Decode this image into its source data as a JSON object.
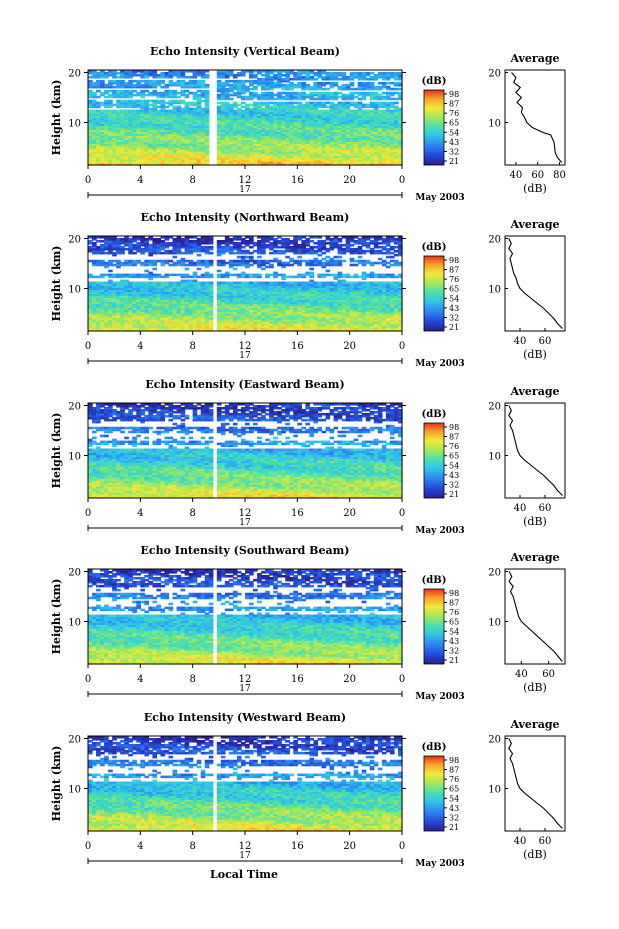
{
  "figure": {
    "x_axis_label": "Local Time",
    "x_ticks": [
      "0",
      "4",
      "8",
      "12",
      "16",
      "20",
      "0"
    ],
    "date_day": "17",
    "date_label": "May 2003",
    "y_axis_label": "Height (km)",
    "y_ticks": [
      "20",
      "10"
    ],
    "colorbar_title": "(dB)",
    "avg_title": "Average",
    "avg_xlabel": "(dB)"
  },
  "chart_data": [
    {
      "type": "heatmap",
      "title": "Echo Intensity (Vertical Beam)",
      "xlabel": "",
      "ylabel": "Height (km)",
      "xlim": [
        0,
        24
      ],
      "ylim": [
        1.5,
        20.5
      ],
      "colorbar": {
        "label": "(dB)",
        "ticks": [
          "98",
          "87",
          "76",
          "65",
          "54",
          "43",
          "32",
          "21"
        ],
        "range": [
          21,
          98
        ]
      },
      "data_gap_hours": [
        9.3,
        9.7
      ],
      "average_profile": {
        "xlabel": "(dB)",
        "xticks": [
          "40",
          "60",
          "80"
        ],
        "yticks": [
          "20",
          "10"
        ],
        "xlim": [
          30,
          85
        ],
        "points": [
          [
            36,
            20
          ],
          [
            40,
            19
          ],
          [
            38,
            18
          ],
          [
            44,
            17
          ],
          [
            40,
            16
          ],
          [
            45,
            15
          ],
          [
            41,
            14
          ],
          [
            46,
            13
          ],
          [
            45,
            12
          ],
          [
            48,
            11
          ],
          [
            50,
            10
          ],
          [
            55,
            9
          ],
          [
            65,
            8
          ],
          [
            72,
            7.5
          ],
          [
            75,
            6
          ],
          [
            76,
            4
          ],
          [
            78,
            3
          ],
          [
            82,
            2
          ]
        ]
      }
    },
    {
      "type": "heatmap",
      "title": "Echo Intensity (Northward Beam)",
      "xlabel": "",
      "ylabel": "Height (km)",
      "xlim": [
        0,
        24
      ],
      "ylim": [
        1.5,
        20.5
      ],
      "colorbar": {
        "label": "(dB)",
        "ticks": [
          "98",
          "87",
          "76",
          "65",
          "54",
          "43",
          "32",
          "21"
        ],
        "range": [
          21,
          98
        ]
      },
      "data_gap_hours": [
        9.4,
        9.8
      ],
      "average_profile": {
        "xlabel": "(dB)",
        "xticks": [
          "40",
          "60"
        ],
        "yticks": [
          "20",
          "10"
        ],
        "xlim": [
          28,
          76
        ],
        "points": [
          [
            31,
            20
          ],
          [
            33,
            19
          ],
          [
            31,
            18
          ],
          [
            34,
            17
          ],
          [
            32,
            16
          ],
          [
            33,
            15
          ],
          [
            34,
            14
          ],
          [
            35,
            13
          ],
          [
            37,
            12
          ],
          [
            38,
            11
          ],
          [
            40,
            10
          ],
          [
            44,
            9
          ],
          [
            49,
            8
          ],
          [
            54,
            7
          ],
          [
            59,
            6
          ],
          [
            63,
            5
          ],
          [
            67,
            4
          ],
          [
            70,
            3
          ],
          [
            74,
            2
          ]
        ]
      }
    },
    {
      "type": "heatmap",
      "title": "Echo Intensity (Eastward Beam)",
      "xlabel": "",
      "ylabel": "Height (km)",
      "xlim": [
        0,
        24
      ],
      "ylim": [
        1.5,
        20.5
      ],
      "colorbar": {
        "label": "(dB)",
        "ticks": [
          "98",
          "87",
          "76",
          "65",
          "54",
          "43",
          "32",
          "21"
        ],
        "range": [
          21,
          98
        ]
      },
      "data_gap_hours": [
        9.4,
        9.8
      ],
      "average_profile": {
        "xlabel": "(dB)",
        "xticks": [
          "40",
          "60"
        ],
        "yticks": [
          "20",
          "10"
        ],
        "xlim": [
          28,
          76
        ],
        "points": [
          [
            31,
            20
          ],
          [
            33,
            19
          ],
          [
            31,
            18
          ],
          [
            34,
            17
          ],
          [
            32,
            16
          ],
          [
            34,
            15
          ],
          [
            35,
            14
          ],
          [
            36,
            13
          ],
          [
            37,
            12
          ],
          [
            38,
            11
          ],
          [
            40,
            10
          ],
          [
            44,
            9
          ],
          [
            49,
            8
          ],
          [
            54,
            7
          ],
          [
            59,
            6
          ],
          [
            63,
            5
          ],
          [
            67,
            4
          ],
          [
            70,
            3
          ],
          [
            74,
            2
          ]
        ]
      }
    },
    {
      "type": "heatmap",
      "title": "Echo Intensity (Southward Beam)",
      "xlabel": "",
      "ylabel": "Height (km)",
      "xlim": [
        0,
        24
      ],
      "ylim": [
        1.5,
        20.5
      ],
      "colorbar": {
        "label": "(dB)",
        "ticks": [
          "98",
          "87",
          "76",
          "65",
          "54",
          "43",
          "32",
          "21"
        ],
        "range": [
          21,
          98
        ]
      },
      "data_gap_hours": [
        9.4,
        9.8
      ],
      "average_profile": {
        "xlabel": "(dB)",
        "xticks": [
          "40",
          "60"
        ],
        "yticks": [
          "20",
          "10"
        ],
        "xlim": [
          28,
          72
        ],
        "points": [
          [
            31,
            20
          ],
          [
            33,
            19
          ],
          [
            31,
            18
          ],
          [
            34,
            17
          ],
          [
            32,
            16
          ],
          [
            34,
            15
          ],
          [
            35,
            14
          ],
          [
            36,
            13
          ],
          [
            37,
            12
          ],
          [
            38,
            11
          ],
          [
            40,
            10
          ],
          [
            44,
            9
          ],
          [
            48,
            8
          ],
          [
            52,
            7
          ],
          [
            56,
            6
          ],
          [
            60,
            5
          ],
          [
            64,
            4
          ],
          [
            67,
            3
          ],
          [
            70,
            2
          ]
        ]
      }
    },
    {
      "type": "heatmap",
      "title": "Echo Intensity (Westward Beam)",
      "xlabel": "Local Time",
      "ylabel": "Height (km)",
      "xlim": [
        0,
        24
      ],
      "ylim": [
        1.5,
        20.5
      ],
      "colorbar": {
        "label": "(dB)",
        "ticks": [
          "98",
          "87",
          "76",
          "65",
          "54",
          "43",
          "32",
          "21"
        ],
        "range": [
          21,
          98
        ]
      },
      "data_gap_hours": [
        9.4,
        9.8
      ],
      "average_profile": {
        "xlabel": "(dB)",
        "xticks": [
          "40",
          "60"
        ],
        "yticks": [
          "20",
          "10"
        ],
        "xlim": [
          28,
          76
        ],
        "points": [
          [
            31,
            20
          ],
          [
            33,
            19
          ],
          [
            31,
            18
          ],
          [
            34,
            17
          ],
          [
            32,
            16
          ],
          [
            34,
            15
          ],
          [
            35,
            14
          ],
          [
            36,
            13
          ],
          [
            37,
            12
          ],
          [
            38,
            11
          ],
          [
            40,
            10
          ],
          [
            44,
            9
          ],
          [
            49,
            8
          ],
          [
            54,
            7
          ],
          [
            59,
            6
          ],
          [
            63,
            5
          ],
          [
            67,
            4
          ],
          [
            70,
            3
          ],
          [
            74,
            2
          ]
        ]
      }
    }
  ]
}
